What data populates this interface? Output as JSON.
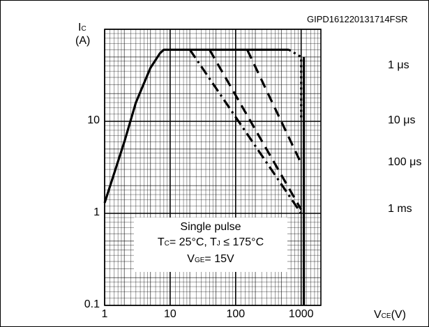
{
  "code": "GIPD161220131714FSR",
  "chart_data": {
    "type": "line",
    "x_scale": "log",
    "y_scale": "log",
    "xlim": [
      1,
      2000
    ],
    "ylim": [
      0.1,
      100
    ],
    "grid": true,
    "ylabel": {
      "main": "I",
      "sub": "C",
      "unit": "(A)"
    },
    "xlabel": {
      "main": "V",
      "sub": "CE",
      "unit": "(V)"
    },
    "x_ticks": [
      {
        "value": 1,
        "label": "1"
      },
      {
        "value": 10,
        "label": "10"
      },
      {
        "value": 100,
        "label": "100"
      },
      {
        "value": 1000,
        "label": "1000"
      }
    ],
    "y_ticks": [
      {
        "value": 0.1,
        "label": "0.1"
      },
      {
        "value": 1,
        "label": "1"
      },
      {
        "value": 10,
        "label": "10"
      }
    ],
    "series": [
      {
        "name": "",
        "style": "solid",
        "points": [
          [
            1,
            1.3
          ],
          [
            2,
            6
          ],
          [
            3,
            16
          ],
          [
            5,
            38
          ],
          [
            7,
            55
          ],
          [
            8,
            60
          ],
          [
            650,
            60
          ]
        ]
      },
      {
        "name": "",
        "style": "dotted",
        "points": [
          [
            650,
            60
          ],
          [
            1000,
            50
          ],
          [
            1000,
            10
          ]
        ]
      },
      {
        "name": "",
        "style": "dashed",
        "points": [
          [
            150,
            60
          ],
          [
            1000,
            3.5
          ]
        ]
      },
      {
        "name": "",
        "style": "dashed",
        "points": [
          [
            40,
            60
          ],
          [
            1000,
            1.1
          ]
        ]
      },
      {
        "name": "",
        "style": "dashdot",
        "points": [
          [
            20,
            60
          ],
          [
            1000,
            1
          ]
        ]
      },
      {
        "name": "",
        "style": "solid",
        "points": [
          [
            1100,
            50
          ],
          [
            1100,
            0.1
          ]
        ]
      }
    ],
    "curve_labels": [
      {
        "label": "1 μs",
        "value": 40
      },
      {
        "label": "10 μs",
        "value": 10
      },
      {
        "label": "100 μs",
        "value": 3.5
      },
      {
        "label": "1 ms",
        "value": 1.1
      }
    ],
    "annotation": {
      "line1": "Single pulse",
      "line2_a": "T",
      "line2_a_sub": "C",
      "line2_b": "= 25°C, T",
      "line2_b_sub": "J",
      "line2_c": "≤ 175°C",
      "line3_a": "V",
      "line3_a_sub": "GE",
      "line3_b": "= 15V"
    }
  }
}
